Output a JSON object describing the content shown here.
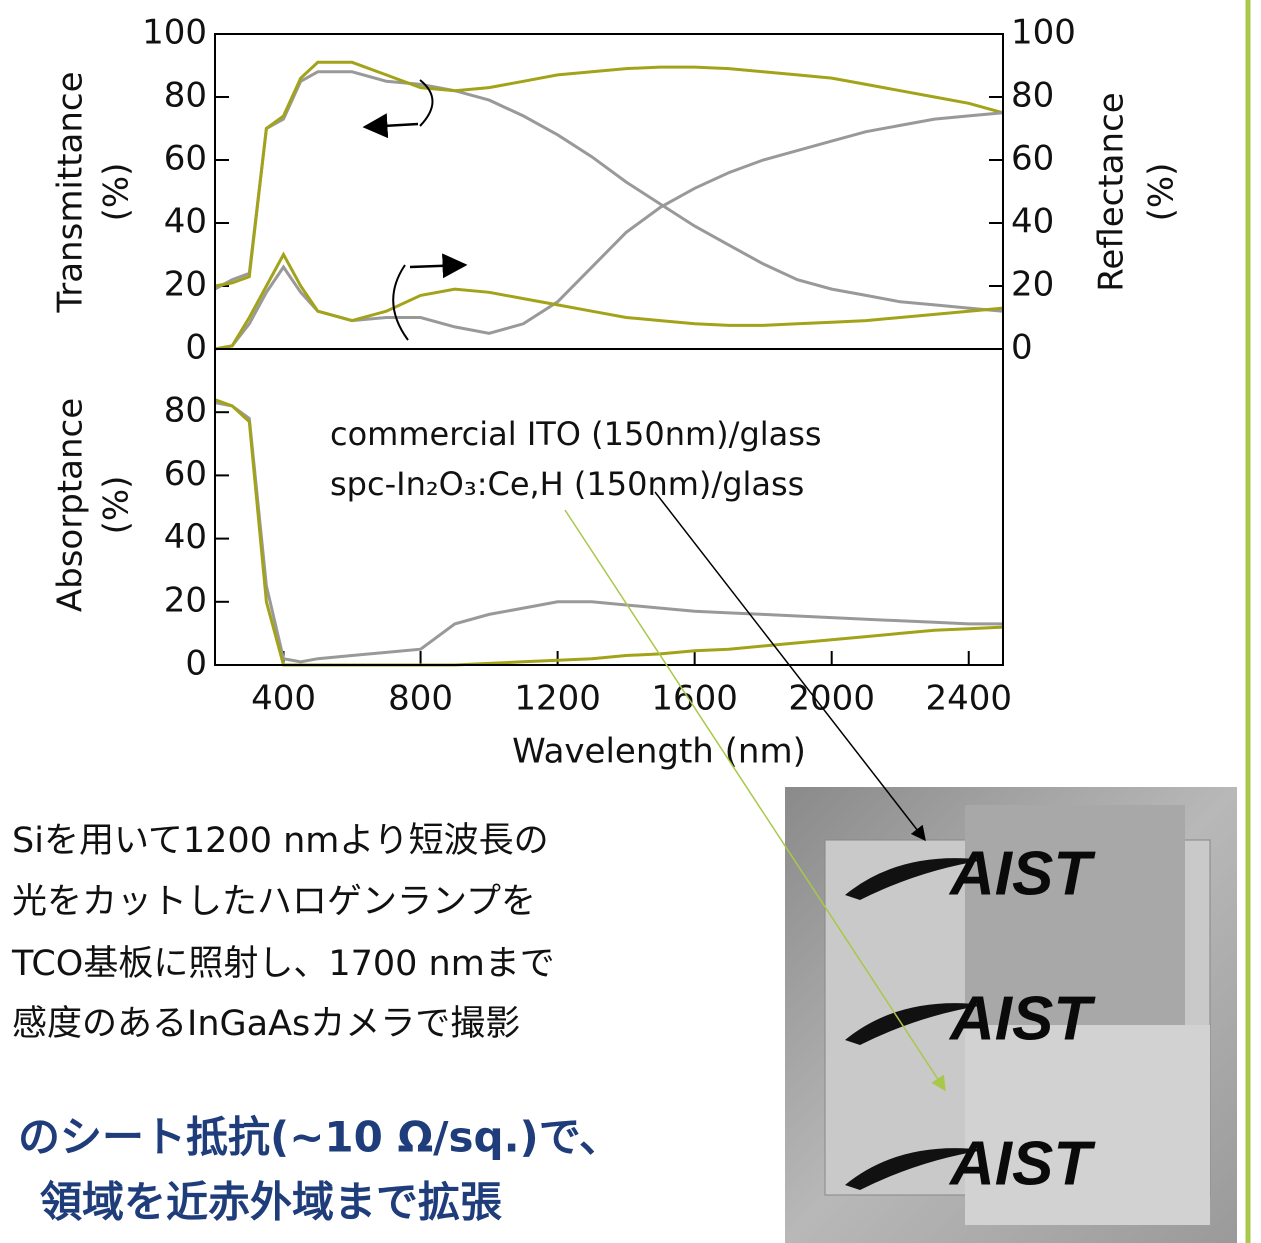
{
  "chart_data": [
    {
      "type": "line",
      "y_label": [
        "Transmittance",
        "(%)"
      ],
      "y2_label": [
        "Reflectance",
        "(%)"
      ],
      "xlim": [
        200,
        2500
      ],
      "ylim": [
        0,
        100
      ],
      "yticks": [
        0,
        20,
        40,
        60,
        80,
        100
      ],
      "y2lim": [
        0,
        100
      ],
      "y2ticks": [
        0,
        20,
        40,
        60,
        80,
        100
      ],
      "x": [
        200,
        250,
        300,
        350,
        400,
        450,
        500,
        600,
        700,
        800,
        900,
        1000,
        1100,
        1200,
        1300,
        1400,
        1500,
        1600,
        1700,
        1800,
        1900,
        2000,
        2100,
        2200,
        2300,
        2400,
        2500
      ],
      "series": [
        {
          "color": "#999999",
          "values": [
            19,
            22,
            24,
            70,
            73,
            85,
            88,
            88,
            85,
            84,
            82,
            79,
            74,
            68,
            61,
            53,
            46,
            39,
            33,
            27,
            22,
            19,
            17,
            15,
            14,
            13,
            12
          ]
        },
        {
          "color": "#a3a31a",
          "values": [
            20,
            21,
            23,
            70,
            74,
            86,
            91,
            91,
            87,
            83,
            82,
            83,
            85,
            87,
            88,
            89,
            89.5,
            89.5,
            89,
            88,
            87,
            86,
            84,
            82,
            80,
            78,
            75
          ]
        },
        {
          "color": "#999999",
          "axis": "y2",
          "values": [
            0,
            1,
            8,
            18,
            26,
            18,
            12,
            9,
            10,
            10,
            7,
            5,
            8,
            15,
            26,
            37,
            45,
            51,
            56,
            60,
            63,
            66,
            69,
            71,
            73,
            74,
            75
          ]
        },
        {
          "color": "#a3a31a",
          "axis": "y2",
          "values": [
            0,
            1,
            10,
            20,
            30,
            20,
            12,
            9,
            12,
            17,
            19,
            18,
            16,
            14,
            12,
            10,
            9,
            8,
            7.5,
            7.5,
            8,
            8.5,
            9,
            10,
            11,
            12,
            13
          ]
        }
      ]
    },
    {
      "type": "line",
      "y_label": [
        "Absorptance",
        "(%)"
      ],
      "x_label": "Wavelength (nm)",
      "xlim": [
        200,
        2500
      ],
      "xticks": [
        400,
        800,
        1200,
        1600,
        2000,
        2400
      ],
      "ylim": [
        0,
        100
      ],
      "yticks": [
        0,
        20,
        40,
        60,
        80
      ],
      "x": [
        200,
        250,
        300,
        350,
        400,
        450,
        500,
        600,
        700,
        800,
        900,
        1000,
        1100,
        1200,
        1300,
        1400,
        1500,
        1600,
        1700,
        1800,
        1900,
        2000,
        2100,
        2200,
        2300,
        2400,
        2500
      ],
      "series": [
        {
          "name": "commercial ITO (150nm)/glass",
          "color": "#999999",
          "values": [
            83,
            82,
            78,
            25,
            2,
            1,
            2,
            3,
            4,
            5,
            13,
            16,
            18,
            20,
            20,
            19,
            18,
            17,
            16.5,
            16,
            15.5,
            15,
            14.5,
            14,
            13.5,
            13,
            13
          ]
        },
        {
          "name": "spc-In₂O₃:Ce,H (150nm)/glass",
          "color": "#a3a31a",
          "values": [
            84,
            82,
            77,
            20,
            0,
            0,
            0,
            0,
            0,
            0,
            0,
            0.5,
            1,
            1.5,
            2,
            3,
            3.5,
            4.5,
            5,
            6,
            7,
            8,
            9,
            10,
            11,
            11.5,
            12
          ]
        }
      ]
    }
  ],
  "caption": [
    "Siを用いて1200 nmより短波長の",
    "光をカットしたハロゲンランプを",
    "TCO基板に照射し、1700 nmまで",
    "感度のあるInGaAsカメラで撮影"
  ],
  "headline": [
    "のシート抵抗(~10 Ω/sq.)で、",
    "領域を近赤外域まで拡張"
  ],
  "photo": {
    "labels": [
      "AIST",
      "AIST",
      "AIST"
    ]
  }
}
